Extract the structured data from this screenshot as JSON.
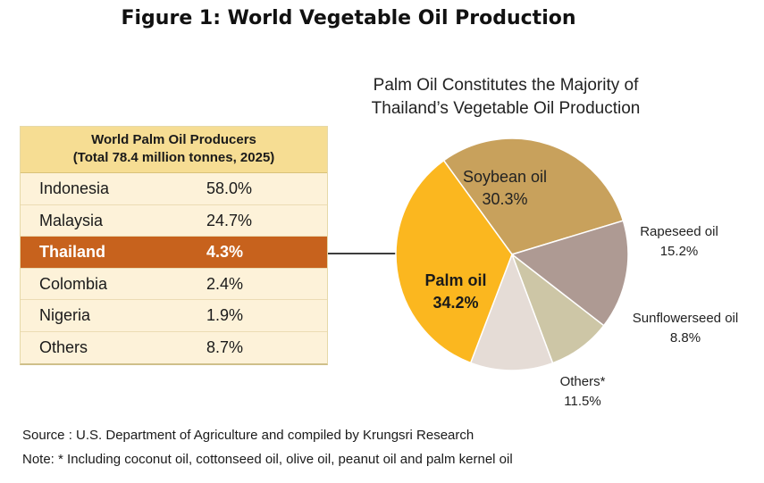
{
  "figure_title": "Figure 1: World Vegetable Oil Production",
  "producers_table": {
    "title_line1": "World Palm Oil Producers",
    "title_line2": "(Total 78.4 million tonnes, 2025)",
    "rows": [
      {
        "country": "Indonesia",
        "share": "58.0%",
        "highlight": false
      },
      {
        "country": "Malaysia",
        "share": "24.7%",
        "highlight": false
      },
      {
        "country": "Thailand",
        "share": "4.3%",
        "highlight": true
      },
      {
        "country": "Colombia",
        "share": "2.4%",
        "highlight": false
      },
      {
        "country": "Nigeria",
        "share": "1.9%",
        "highlight": false
      },
      {
        "country": "Others",
        "share": "8.7%",
        "highlight": false
      }
    ]
  },
  "chart_data": {
    "type": "pie",
    "title_line1": "Palm Oil Constitutes the Majority of",
    "title_line2": "Thailand’s Vegetable Oil Production",
    "slices": [
      {
        "label": "Soybean oil",
        "value": 30.3,
        "value_label": "30.3%",
        "color": "#c8a15c",
        "label_color": "#222222",
        "bold": false
      },
      {
        "label": "Rapeseed oil",
        "value": 15.2,
        "value_label": "15.2%",
        "color": "#ae9a93",
        "label_color": "#222222",
        "bold": false
      },
      {
        "label": "Sunflowerseed oil",
        "value": 8.8,
        "value_label": "8.8%",
        "color": "#cdc6a6",
        "label_color": "#222222",
        "bold": false
      },
      {
        "label": "Others*",
        "value": 11.5,
        "value_label": "11.5%",
        "color": "#e5dcd6",
        "label_color": "#222222",
        "bold": false
      },
      {
        "label": "Palm oil",
        "value": 34.2,
        "value_label": "34.2%",
        "color": "#fbb71f",
        "label_color": "#1a1a1a",
        "bold": true
      }
    ]
  },
  "source_text": "Source : U.S. Department of Agriculture and compiled by Krungsri Research",
  "note_text": "Note: * Including coconut oil, cottonseed oil, olive oil, peanut oil and palm kernel oil"
}
